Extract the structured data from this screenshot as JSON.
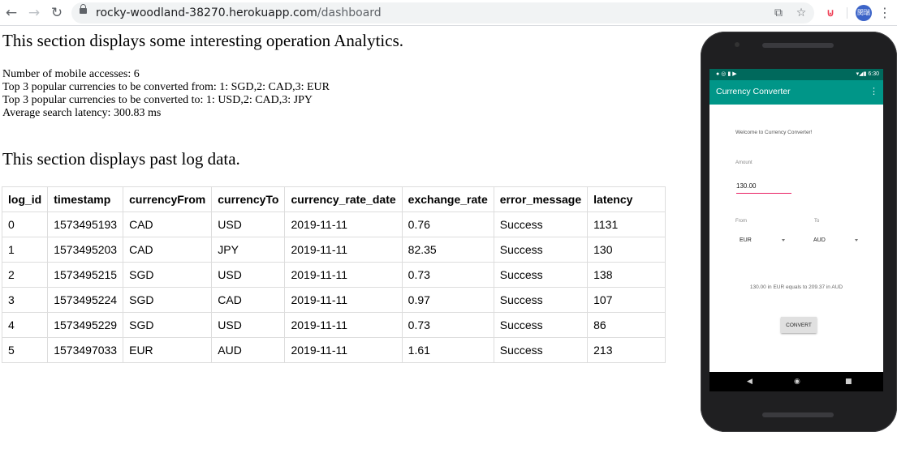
{
  "browser": {
    "url_domain": "rocky-woodland-38270.herokuapp.com",
    "url_path": "/dashboard",
    "avatar_text": "閔瑞"
  },
  "analytics": {
    "heading": "This section displays some interesting operation Analytics.",
    "mobile_accesses": "Number of mobile accesses: 6",
    "popular_from": "Top 3 popular currencies to be converted from: 1: SGD,2: CAD,3: EUR",
    "popular_to": "Top 3 popular currencies to be converted to: 1: USD,2: CAD,3: JPY",
    "avg_latency": "Average search latency: 300.83 ms"
  },
  "log": {
    "heading": "This section displays past log data.",
    "columns": [
      "log_id",
      "timestamp",
      "currencyFrom",
      "currencyTo",
      "currency_rate_date",
      "exchange_rate",
      "error_message",
      "latency"
    ],
    "rows": [
      [
        "0",
        "1573495193",
        "CAD",
        "USD",
        "2019-11-11",
        "0.76",
        "Success",
        "1131"
      ],
      [
        "1",
        "1573495203",
        "CAD",
        "JPY",
        "2019-11-11",
        "82.35",
        "Success",
        "130"
      ],
      [
        "2",
        "1573495215",
        "SGD",
        "USD",
        "2019-11-11",
        "0.73",
        "Success",
        "138"
      ],
      [
        "3",
        "1573495224",
        "SGD",
        "CAD",
        "2019-11-11",
        "0.97",
        "Success",
        "107"
      ],
      [
        "4",
        "1573495229",
        "SGD",
        "USD",
        "2019-11-11",
        "0.73",
        "Success",
        "86"
      ],
      [
        "5",
        "1573497033",
        "EUR",
        "AUD",
        "2019-11-11",
        "1.61",
        "Success",
        "213"
      ]
    ]
  },
  "phone": {
    "time": "6:30",
    "app_title": "Currency Converter",
    "welcome": "Welcome to Currency Converter!",
    "amount_label": "Amount",
    "amount_value": "130.00",
    "from_label": "From",
    "to_label": "To",
    "from_value": "EUR",
    "to_value": "AUD",
    "result": "130.00 in EUR equals to 209.37 in AUD",
    "convert_label": "CONVERT",
    "colors": {
      "status_bar": "#00695c",
      "app_bar": "#009688",
      "input_underline": "#e91e63"
    }
  }
}
